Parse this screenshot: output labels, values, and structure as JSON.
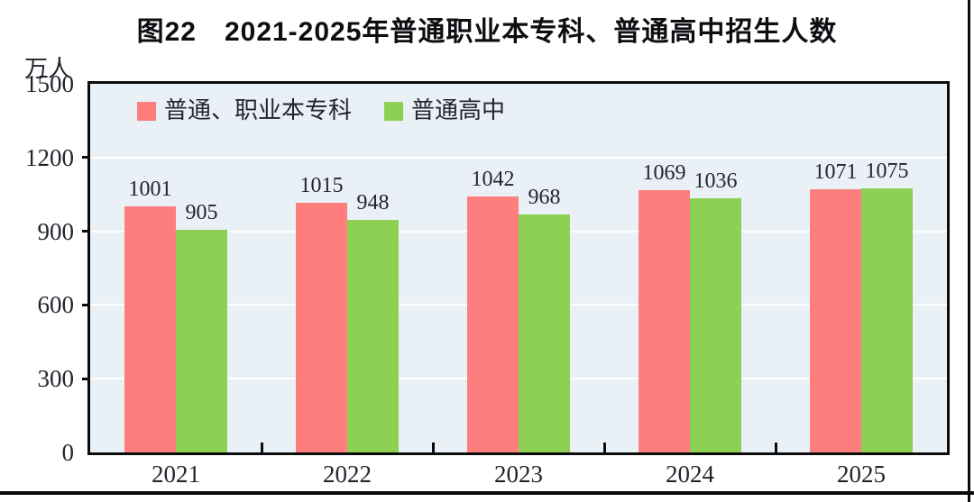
{
  "title": "图22　2021-2025年普通职业本专科、普通高中招生人数",
  "unit_label": "万人",
  "colors": {
    "series1": "#fe7e7e",
    "series2": "#8dd053",
    "plot_background": "#eaf1f6",
    "gridline": "#ffffff",
    "frame": "#0c0c0c"
  },
  "chart_data": {
    "type": "bar",
    "title": "图22　2021-2025年普通职业本专科、普通高中招生人数",
    "ylabel": "万人",
    "xlabel": "",
    "categories": [
      "2021",
      "2022",
      "2023",
      "2024",
      "2025"
    ],
    "series": [
      {
        "name": "普通、职业本专科",
        "color": "#fe7e7e",
        "values": [
          1001,
          1015,
          1042,
          1069,
          1071
        ]
      },
      {
        "name": "普通高中",
        "color": "#8dd053",
        "values": [
          905,
          948,
          968,
          1036,
          1075
        ]
      }
    ],
    "ylim": [
      0,
      1500
    ],
    "yticks": [
      0,
      300,
      600,
      900,
      1200,
      1500
    ],
    "gridline_values": [
      300,
      600,
      900,
      1200
    ],
    "grid": true,
    "legend_position": "top-left",
    "data_labels": true
  }
}
